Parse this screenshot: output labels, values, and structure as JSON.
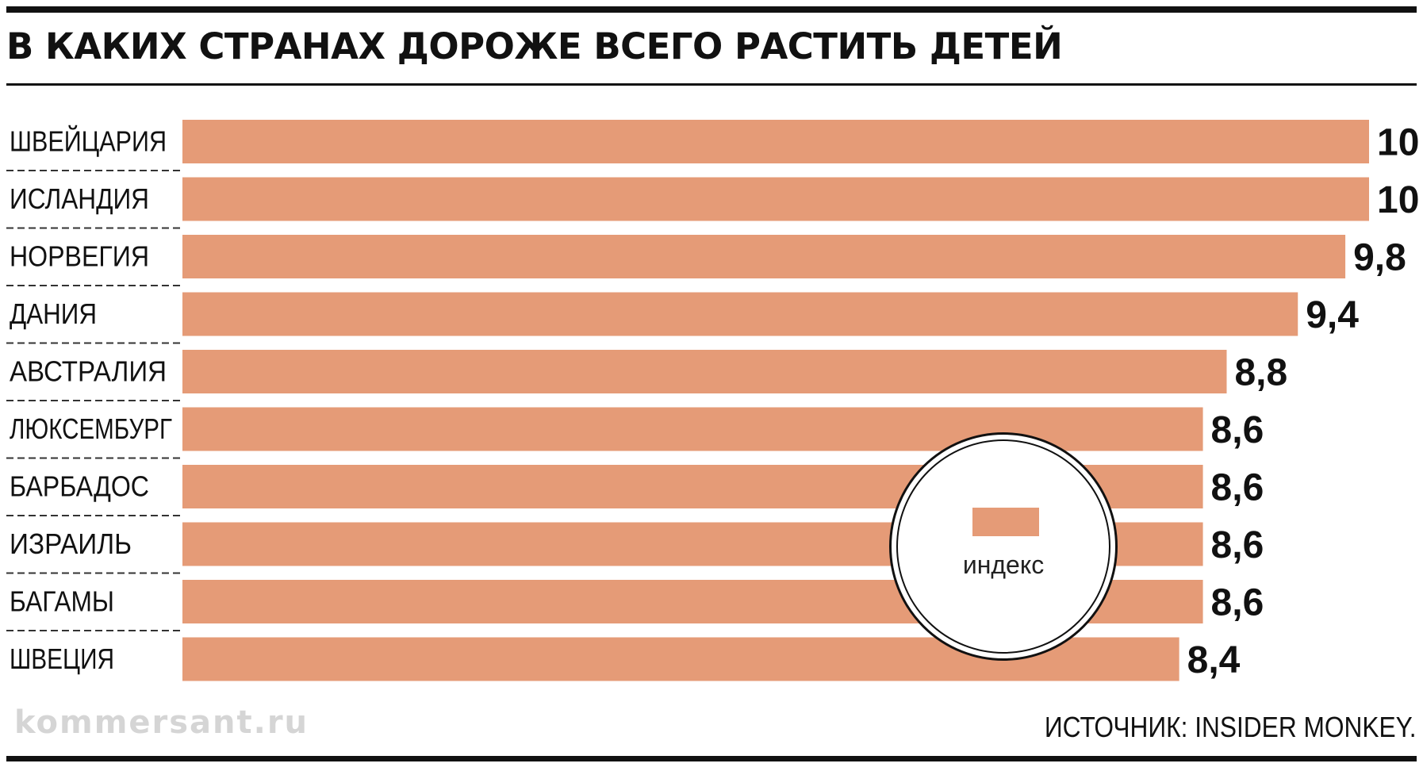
{
  "title": "В КАКИХ СТРАНАХ ДОРОЖЕ ВСЕГО РАСТИТЬ ДЕТЕЙ",
  "watermark": "kommersant.ru",
  "source": "ИСТОЧНИК: INSIDER MONKEY.",
  "colors": {
    "bar": "#e59b77",
    "text": "#111111"
  },
  "legend": {
    "label": "индекс"
  },
  "chart_data": {
    "type": "bar",
    "orientation": "horizontal",
    "title": "В КАКИХ СТРАНАХ ДОРОЖЕ ВСЕГО РАСТИТЬ ДЕТЕЙ",
    "xlabel": "",
    "ylabel": "",
    "xlim": [
      0,
      10
    ],
    "grid": false,
    "legend_position": "bottom-right",
    "categories": [
      "ШВЕЙЦАРИЯ",
      "ИСЛАНДИЯ",
      "НОРВЕГИЯ",
      "ДАНИЯ",
      "АВСТРАЛИЯ",
      "ЛЮКСЕМБУРГ",
      "БАРБАДОС",
      "ИЗРАИЛЬ",
      "БАГАМЫ",
      "ШВЕЦИЯ"
    ],
    "values": [
      10,
      10,
      9.8,
      9.4,
      8.8,
      8.6,
      8.6,
      8.6,
      8.6,
      8.4
    ],
    "value_labels": [
      "10",
      "10",
      "9,8",
      "9,4",
      "8,8",
      "8,6",
      "8,6",
      "8,6",
      "8,6",
      "8,4"
    ],
    "series": [
      {
        "name": "индекс",
        "values": [
          10,
          10,
          9.8,
          9.4,
          8.8,
          8.6,
          8.6,
          8.6,
          8.6,
          8.4
        ]
      }
    ]
  }
}
